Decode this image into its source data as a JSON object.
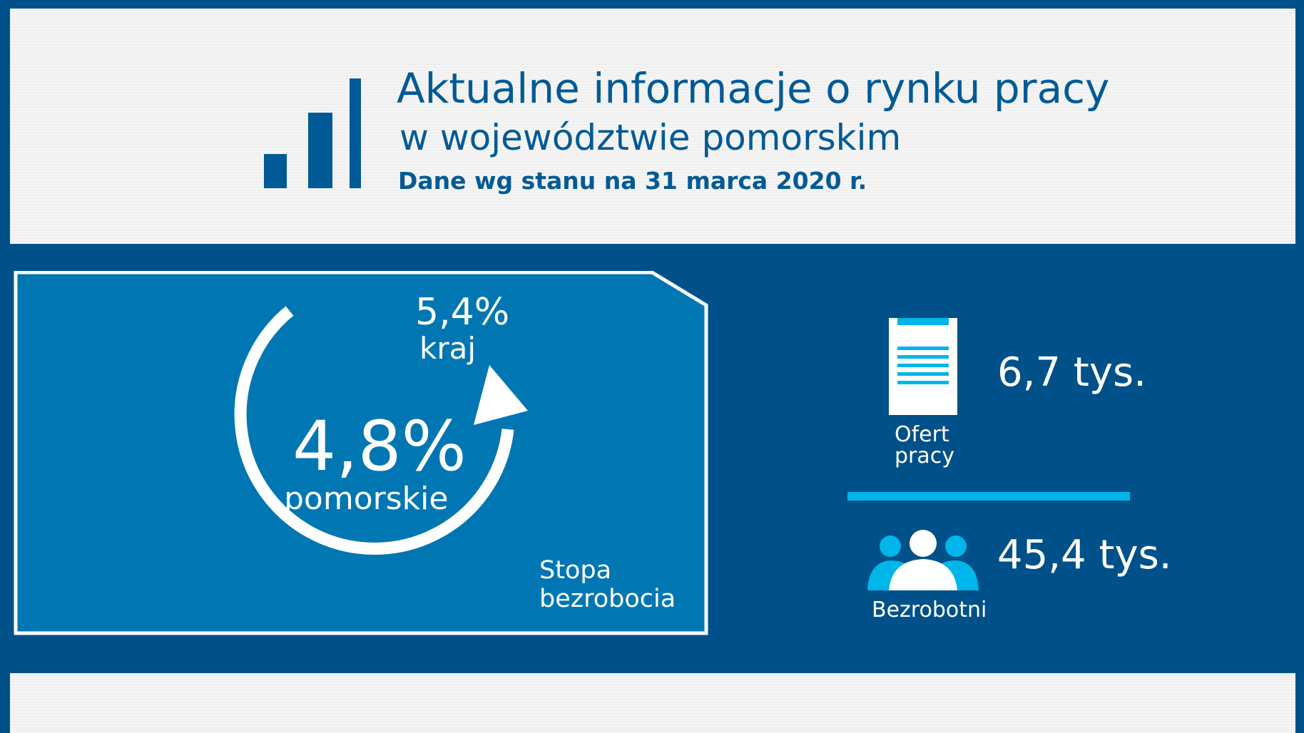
{
  "header": {
    "title_line1": "Aktualne informacje o rynku pracy",
    "title_line2": "w województwie pomorskim",
    "date_line": "Dane wg stanu na 31 marca 2020 r."
  },
  "unemployment_rate": {
    "country_value": "5,4%",
    "country_label": "kraj",
    "region_value": "4,8%",
    "region_label": "pomorskie",
    "title_line1": "Stopa",
    "title_line2": "bezrobocia"
  },
  "job_offers": {
    "value": "6,7 tys.",
    "label_line1": "Ofert",
    "label_line2": "pracy",
    "icon": "document-icon"
  },
  "unemployed": {
    "value": "45,4 tys.",
    "label": "Bezrobotni",
    "icon": "people-icon"
  },
  "colors": {
    "dark_blue": "#005189",
    "card_blue": "#0077b3",
    "accent_cyan": "#00b5e9",
    "title_blue": "#005a96",
    "white": "#ffffff"
  }
}
